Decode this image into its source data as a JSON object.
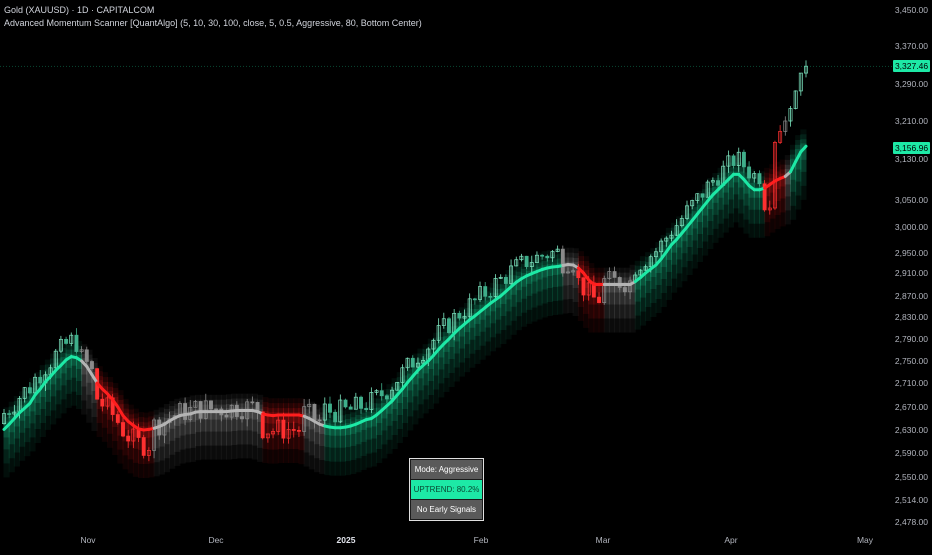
{
  "header": {
    "symbol_title": "Gold (XAUUSD) · 1D · CAPITALCOM",
    "indicator_title": "Advanced Momentum Scanner [QuantAlgo] (5, 10, 30, 100, close, 5, 0.5, Aggressive, 80, Bottom Center)"
  },
  "status_table": {
    "mode": "Mode: Aggressive",
    "trend": "UPTREND: 80.2%",
    "signal": "No Early Signals"
  },
  "price_tags": {
    "last_price": "3,327.46",
    "line_value": "3,156.96"
  },
  "colors": {
    "up": "#1de9a6",
    "down": "#ff1e1e",
    "neutral": "#b4b4b4",
    "background": "#000000"
  },
  "chart_data": {
    "type": "candlestick",
    "y_axis": {
      "side": "right",
      "ticks": [
        "3,450.00",
        "3,370.00",
        "3,290.00",
        "3,210.00",
        "3,130.00",
        "3,050.00",
        "3,000.00",
        "2,950.00",
        "2,910.00",
        "2,870.00",
        "2,830.00",
        "2,790.00",
        "2,750.00",
        "2,710.00",
        "2,670.00",
        "2,630.00",
        "2,590.00",
        "2,550.00",
        "2,514.00",
        "2,478.00"
      ]
    },
    "x_axis": {
      "ticks": [
        "Nov",
        "Dec",
        "2025",
        "Feb",
        "Mar",
        "Apr",
        "May"
      ],
      "bold_tick": "2025"
    },
    "series": [
      {
        "name": "momentum-line",
        "close": [
          2631,
          2640,
          2650,
          2660,
          2668,
          2676,
          2690,
          2700,
          2712,
          2722,
          2733,
          2742,
          2752,
          2758,
          2756,
          2750,
          2740,
          2725,
          2710,
          2700,
          2692,
          2682,
          2670,
          2655,
          2645,
          2638,
          2632,
          2630,
          2631,
          2633,
          2636,
          2640,
          2646,
          2651,
          2655,
          2657,
          2658,
          2661,
          2662,
          2662,
          2662,
          2662,
          2662,
          2662,
          2663,
          2664,
          2664,
          2664,
          2664,
          2662,
          2658,
          2656,
          2655,
          2656,
          2656,
          2656,
          2656,
          2656,
          2654,
          2650,
          2645,
          2640,
          2637,
          2635,
          2634,
          2634,
          2635,
          2637,
          2640,
          2644,
          2648,
          2650,
          2656,
          2664,
          2672,
          2680,
          2690,
          2700,
          2711,
          2722,
          2733,
          2742,
          2750,
          2760,
          2771,
          2781,
          2790,
          2800,
          2809,
          2817,
          2825,
          2832,
          2840,
          2848,
          2856,
          2863,
          2870,
          2878,
          2886,
          2894,
          2900,
          2905,
          2909,
          2913,
          2917,
          2920,
          2922,
          2923,
          2925,
          2927,
          2926,
          2920,
          2910,
          2898,
          2890,
          2890,
          2890,
          2890,
          2890,
          2890,
          2890,
          2890,
          2895,
          2902,
          2910,
          2918,
          2926,
          2938,
          2952,
          2966,
          2976,
          2988,
          3000,
          3012,
          3024,
          3036,
          3048,
          3060,
          3070,
          3080,
          3090,
          3100,
          3100,
          3090,
          3078,
          3070,
          3070,
          3073,
          3080,
          3087,
          3092,
          3096,
          3105,
          3125,
          3145,
          3156.96
        ],
        "trend": [
          "u",
          "u",
          "u",
          "u",
          "u",
          "u",
          "u",
          "u",
          "u",
          "u",
          "u",
          "u",
          "u",
          "u",
          "u",
          "n",
          "n",
          "n",
          "d",
          "d",
          "d",
          "d",
          "d",
          "d",
          "d",
          "d",
          "d",
          "d",
          "d",
          "n",
          "n",
          "n",
          "n",
          "n",
          "n",
          "n",
          "n",
          "n",
          "n",
          "n",
          "n",
          "n",
          "n",
          "n",
          "n",
          "n",
          "n",
          "n",
          "n",
          "n",
          "d",
          "d",
          "d",
          "d",
          "d",
          "d",
          "d",
          "d",
          "n",
          "n",
          "n",
          "n",
          "u",
          "u",
          "u",
          "u",
          "u",
          "u",
          "u",
          "u",
          "u",
          "u",
          "u",
          "u",
          "u",
          "u",
          "u",
          "u",
          "u",
          "u",
          "u",
          "u",
          "u",
          "u",
          "u",
          "u",
          "u",
          "u",
          "u",
          "u",
          "u",
          "u",
          "u",
          "u",
          "u",
          "u",
          "u",
          "u",
          "u",
          "u",
          "u",
          "u",
          "u",
          "u",
          "u",
          "u",
          "u",
          "u",
          "n",
          "n",
          "n",
          "d",
          "d",
          "d",
          "d",
          "d",
          "n",
          "n",
          "n",
          "n",
          "n",
          "n",
          "u",
          "u",
          "u",
          "u",
          "u",
          "u",
          "u",
          "u",
          "u",
          "u",
          "u",
          "u",
          "u",
          "u",
          "u",
          "u",
          "u",
          "u",
          "u",
          "u",
          "u",
          "u",
          "u",
          "u",
          "u",
          "d",
          "d",
          "d",
          "d",
          "n",
          "u",
          "u",
          "u",
          "u",
          "u",
          "u",
          "u",
          "u"
        ]
      }
    ],
    "candles": {
      "count": 160,
      "first_close": 2645,
      "last_close": 3327.46,
      "period": "1D"
    },
    "current_price": 3327.46,
    "momentum_line_value": 3156.96
  }
}
